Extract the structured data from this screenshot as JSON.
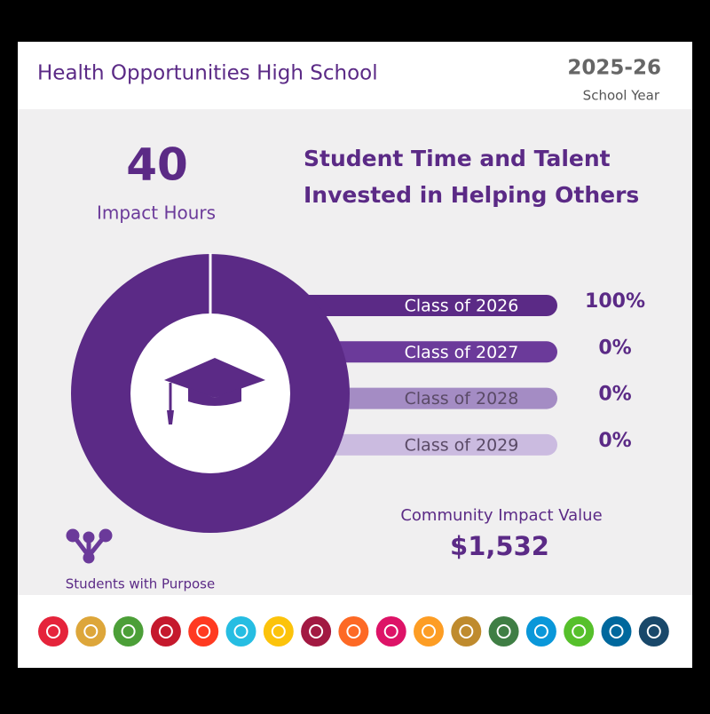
{
  "header": {
    "title": "Health Opportunities High School",
    "year": "2025-26",
    "year_label": "School Year"
  },
  "summary": {
    "hours": 40,
    "hours_label": "Impact Hours",
    "heading_lines": [
      "Student Time and Talent",
      "Invested in Helping Others"
    ]
  },
  "chart_data": {
    "type": "pie",
    "donut": true,
    "categories": [
      "Class of 2026",
      "Class of 2027",
      "Class of 2028",
      "Class of 2029"
    ],
    "values": [
      100,
      0,
      0,
      0
    ],
    "value_labels": [
      "100%",
      "0%",
      "0%",
      "0%"
    ],
    "colors": [
      "#5b2a86",
      "#6b3a9a",
      "#a48cc4",
      "#cbbbe0"
    ]
  },
  "impact": {
    "label": "Community Impact Value",
    "value": "$1,532"
  },
  "brand": {
    "name": "Students with Purpose"
  }
}
